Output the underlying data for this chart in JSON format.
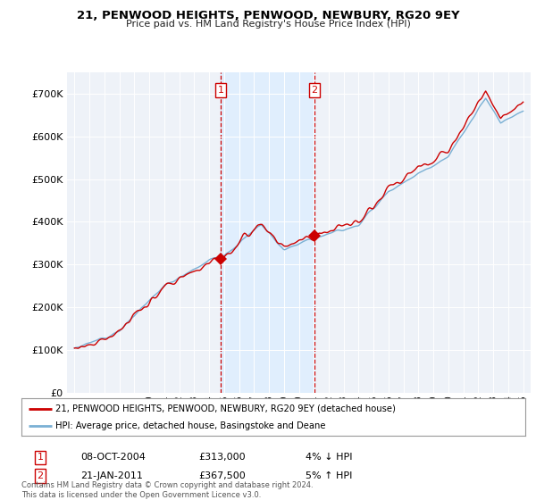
{
  "title": "21, PENWOOD HEIGHTS, PENWOOD, NEWBURY, RG20 9EY",
  "subtitle": "Price paid vs. HM Land Registry's House Price Index (HPI)",
  "sale1_date": "08-OCT-2004",
  "sale1_price": 313000,
  "sale1_pct": "4% ↓ HPI",
  "sale2_date": "21-JAN-2011",
  "sale2_price": 367500,
  "sale2_pct": "5% ↑ HPI",
  "legend_line1": "21, PENWOOD HEIGHTS, PENWOOD, NEWBURY, RG20 9EY (detached house)",
  "legend_line2": "HPI: Average price, detached house, Basingstoke and Deane",
  "footer": "Contains HM Land Registry data © Crown copyright and database right 2024.\nThis data is licensed under the Open Government Licence v3.0.",
  "sale_line_color": "#cc0000",
  "hpi_line_color": "#7ab0d4",
  "background_color": "#ffffff",
  "plot_bg_color": "#eef2f8",
  "marker1_x": 2004.77,
  "marker2_x": 2011.05,
  "marker1_y": 313000,
  "marker2_y": 367500,
  "vline_color": "#cc0000",
  "vline_shade_color": "#ddeeff",
  "ylim": [
    0,
    750000
  ],
  "xlim_start": 1994.5,
  "xlim_end": 2025.5,
  "yticks": [
    0,
    100000,
    200000,
    300000,
    400000,
    500000,
    600000,
    700000
  ]
}
